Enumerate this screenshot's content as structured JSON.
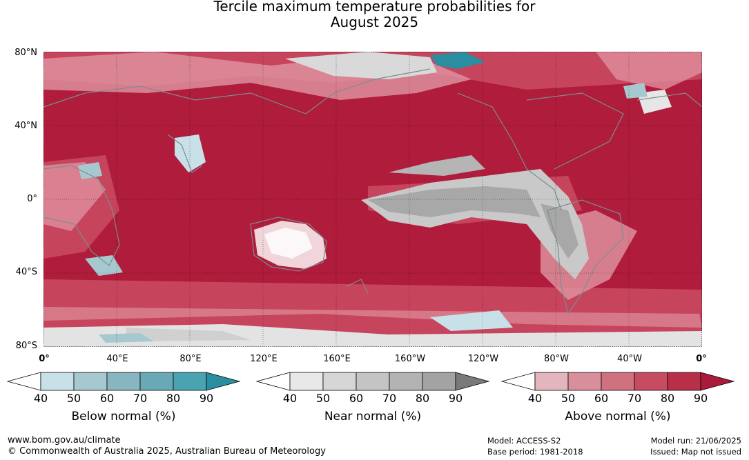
{
  "title": {
    "line1": "Tercile maximum temperature probabilities for",
    "line2": "August 2025"
  },
  "axes": {
    "y_ticks": [
      "80°N",
      "40°N",
      "0°",
      "40°S",
      "80°S"
    ],
    "x_ticks": [
      "0°",
      "40°E",
      "80°E",
      "120°E",
      "160°E",
      "160°W",
      "120°W",
      "80°W",
      "40°W",
      "0°"
    ]
  },
  "colorbars": [
    {
      "label": "Below normal (%)",
      "ticks": [
        "40",
        "50",
        "60",
        "70",
        "80",
        "90"
      ],
      "colors": [
        "#ffffff",
        "#c8e1e8",
        "#a6c9d0",
        "#87b5c0",
        "#69a9b6",
        "#4aa3b1",
        "#2a8ea0"
      ]
    },
    {
      "label": "Near normal (%)",
      "ticks": [
        "40",
        "50",
        "60",
        "70",
        "80",
        "90"
      ],
      "colors": [
        "#ffffff",
        "#e8e8e8",
        "#d6d6d6",
        "#c4c4c4",
        "#b3b3b3",
        "#a3a3a3",
        "#7a7a7a"
      ]
    },
    {
      "label": "Above normal (%)",
      "ticks": [
        "40",
        "50",
        "60",
        "70",
        "80",
        "90"
      ],
      "colors": [
        "#ffffff",
        "#e3b5bd",
        "#d98f9b",
        "#cf717f",
        "#c54c61",
        "#b82f48",
        "#ab1a3a"
      ]
    }
  ],
  "map_colors": {
    "ocean_dominant": "#b01c3b",
    "above_mid": "#c94a62",
    "above_light": "#de8f9d",
    "near_grey": "#a8a8a8",
    "near_light": "#d6d6d6",
    "below_light": "#c8e1e8",
    "below_dark": "#2a8ea0",
    "coast": "#7a8e8e"
  },
  "footer": {
    "url": "www.bom.gov.au/climate",
    "copyright": "© Commonwealth of Australia 2025, Australian Bureau of Meteorology",
    "model": "Model: ACCESS-S2",
    "base_period": "Base period: 1981-2018",
    "model_run": "Model run: 21/06/2025",
    "issued": "Issued: Map not issued"
  }
}
